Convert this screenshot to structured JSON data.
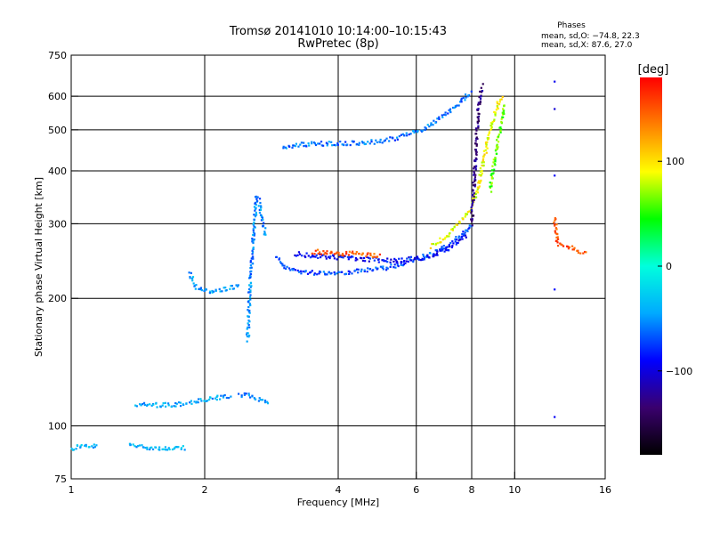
{
  "chart_data": {
    "type": "scatter",
    "title": "Tromsø 20141010 10:14:00–10:15:43",
    "subtitle": "RwPretec (8p)",
    "xlabel": "Frequency [MHz]",
    "ylabel": "Stationary phase Virtual Height [km]",
    "x_scale": "log",
    "y_scale": "log",
    "xlim": [
      1,
      16
    ],
    "ylim": [
      75,
      750
    ],
    "x_ticks": [
      1,
      2,
      4,
      6,
      8,
      10,
      16
    ],
    "y_ticks": [
      75,
      100,
      200,
      300,
      400,
      500,
      600,
      750
    ],
    "x_gridlines": [
      2,
      4,
      6,
      8,
      10
    ],
    "y_gridlines": [
      100,
      200,
      300,
      400,
      500,
      600
    ],
    "grid": true,
    "phase_info": {
      "heading": "Phases",
      "line_o": "mean, sd,O: −74.8, 22.3",
      "line_x": "mean, sd,X:  87.6, 27.0"
    },
    "colorbar": {
      "label": "[deg]",
      "ticks": [
        "100",
        "0",
        "−100"
      ],
      "tick_values": [
        100,
        0,
        -100
      ],
      "range": [
        -180,
        180
      ],
      "colors": [
        "#000000",
        "#3a006e",
        "#0000ff",
        "#00aaff",
        "#00ffdd",
        "#00ff00",
        "#ffff00",
        "#ff7f00",
        "#ff0000"
      ]
    },
    "traces": [
      {
        "f": [
          1.0,
          1.05,
          1.1,
          1.15
        ],
        "h": [
          88,
          90,
          89,
          90
        ],
        "phase": -40
      },
      {
        "f": [
          1.35,
          1.5,
          1.7,
          1.82
        ],
        "h": [
          90,
          89,
          88,
          89
        ],
        "phase": -40
      },
      {
        "f": [
          1.4,
          1.5,
          1.6,
          1.7,
          1.8,
          1.9,
          2.0,
          2.1,
          2.2,
          2.3
        ],
        "h": [
          112,
          112,
          112,
          112,
          113,
          114,
          115,
          116,
          117,
          118
        ],
        "phase": -45
      },
      {
        "f": [
          2.4,
          2.5,
          2.6,
          2.7,
          2.8
        ],
        "h": [
          118,
          118,
          116,
          115,
          114
        ],
        "phase": -55
      },
      {
        "f": [
          1.85,
          1.9,
          1.95,
          2.0,
          2.1,
          2.2,
          2.3,
          2.4
        ],
        "h": [
          230,
          215,
          210,
          208,
          208,
          210,
          212,
          215
        ],
        "phase": -45
      },
      {
        "f": [
          2.5,
          2.52,
          2.55,
          2.58,
          2.6,
          2.62,
          2.65,
          2.7,
          2.75
        ],
        "h": [
          160,
          200,
          240,
          280,
          320,
          350,
          340,
          300,
          280
        ],
        "phase": -55
      },
      {
        "f": [
          2.9,
          3.0,
          3.2,
          3.5,
          3.8,
          4.0,
          4.5,
          5.0,
          5.5,
          6.0,
          6.5,
          7.0,
          7.5,
          7.8,
          8.0
        ],
        "h": [
          250,
          240,
          232,
          230,
          230,
          230,
          232,
          235,
          240,
          247,
          255,
          265,
          280,
          290,
          300
        ],
        "phase": -70
      },
      {
        "f": [
          3.2,
          3.5,
          4.0,
          4.5,
          5.0,
          5.5,
          6.0,
          6.5,
          7.0,
          7.5,
          7.8
        ],
        "h": [
          255,
          252,
          250,
          248,
          246,
          246,
          248,
          252,
          260,
          272,
          285
        ],
        "phase": -90
      },
      {
        "f": [
          3.5,
          4.0,
          4.5,
          5.0
        ],
        "h": [
          258,
          255,
          255,
          252
        ],
        "phase": 150
      },
      {
        "f": [
          6.5,
          7.0,
          7.5,
          8.0,
          8.3,
          8.5,
          8.7,
          9.0,
          9.2,
          9.4
        ],
        "h": [
          265,
          280,
          300,
          330,
          370,
          420,
          480,
          540,
          580,
          600
        ],
        "phase": 90
      },
      {
        "f": [
          8.0,
          8.05,
          8.1,
          8.15,
          8.2,
          8.25,
          8.3,
          8.4,
          8.5
        ],
        "h": [
          300,
          340,
          380,
          430,
          480,
          530,
          580,
          620,
          640
        ],
        "phase": -130
      },
      {
        "f": [
          3.0,
          3.2,
          3.5,
          4.0,
          4.5,
          5.0,
          5.5,
          6.0,
          6.5,
          7.0,
          7.5,
          8.0
        ],
        "h": [
          455,
          460,
          463,
          465,
          466,
          470,
          480,
          495,
          515,
          545,
          580,
          615
        ],
        "phase": -60
      },
      {
        "f": [
          8.8,
          9.0,
          9.2,
          9.4,
          9.5
        ],
        "h": [
          360,
          420,
          480,
          530,
          580
        ],
        "phase": 60
      },
      {
        "f": [
          12.3,
          12.3,
          12.3,
          12.3,
          12.3,
          12.3
        ],
        "h": [
          650,
          560,
          390,
          300,
          210,
          105
        ],
        "phase": -100
      },
      {
        "f": [
          12.3,
          12.5,
          14.5
        ],
        "h": [
          310,
          270,
          255
        ],
        "phase": 150
      }
    ]
  }
}
